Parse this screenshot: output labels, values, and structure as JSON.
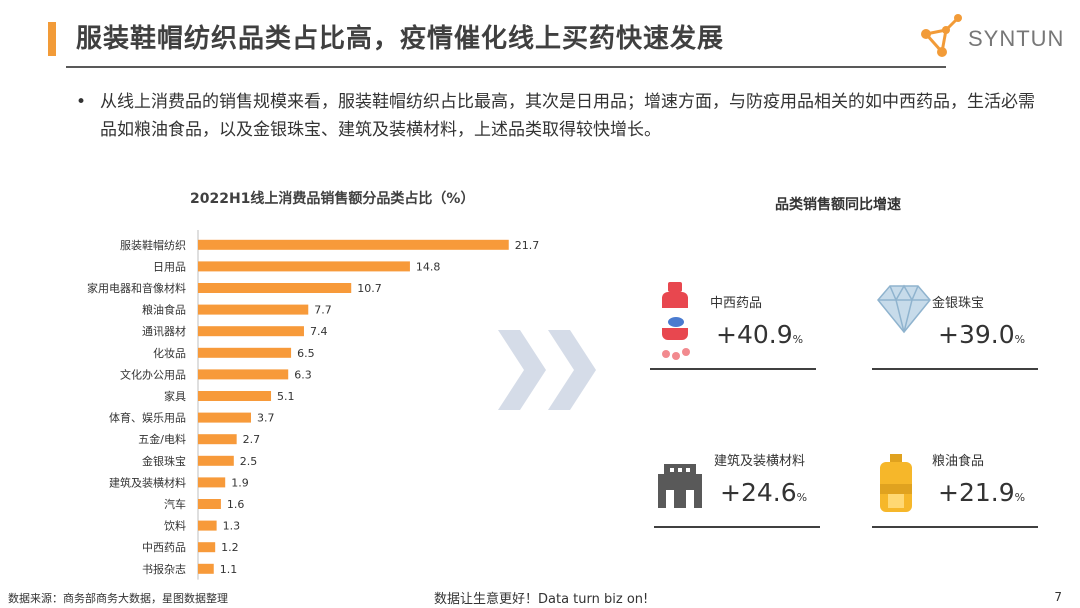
{
  "header": {
    "title": "服装鞋帽纺织品类占比高，疫情催化线上买药快速发展",
    "logo_text": "SYNTUN",
    "accent_color": "#F29B38"
  },
  "summary": {
    "bullet": "•",
    "text": "从线上消费品的销售规模来看，服装鞋帽纺织占比最高，其次是日用品；增速方面，与防疫用品相关的如中西药品，生活必需品如粮油食品，以及金银珠宝、建筑及装横材料，上述品类取得较快增长。"
  },
  "chart_data": {
    "type": "bar",
    "orientation": "horizontal",
    "title": "2022H1线上消费品销售额分品类占比（%）",
    "categories": [
      "服装鞋帽纺织",
      "日用品",
      "家用电器和音像材料",
      "粮油食品",
      "通讯器材",
      "化妆品",
      "文化办公用品",
      "家具",
      "体育、娱乐用品",
      "五金/电料",
      "金银珠宝",
      "建筑及装横材料",
      "汽车",
      "饮料",
      "中西药品",
      "书报杂志"
    ],
    "values": [
      21.7,
      14.8,
      10.7,
      7.7,
      7.4,
      6.5,
      6.3,
      5.1,
      3.7,
      2.7,
      2.5,
      1.9,
      1.6,
      1.3,
      1.2,
      1.1
    ],
    "value_labels": [
      "21.7",
      "14.8",
      "10.7",
      "7.7",
      "7.4",
      "6.5",
      "6.3",
      "5.1",
      "3.7",
      "2.7",
      "2.5",
      "1.9",
      "1.6",
      "1.3",
      "1.2",
      "1.1"
    ],
    "xlim": [
      0,
      25
    ],
    "bar_color": "#F79A3A",
    "grid": false
  },
  "growth": {
    "title": "品类销售额同比增速",
    "items": [
      {
        "name": "中西药品",
        "value": "+40.9",
        "unit": "%",
        "icon": "medicine-bottle-icon"
      },
      {
        "name": "金银珠宝",
        "value": "+39.0",
        "unit": "%",
        "icon": "diamond-icon"
      },
      {
        "name": "建筑及装横材料",
        "value": "+24.6",
        "unit": "%",
        "icon": "building-icon"
      },
      {
        "name": "粮油食品",
        "value": "+21.9",
        "unit": "%",
        "icon": "oil-bottle-icon"
      }
    ]
  },
  "footer": {
    "source": "数据来源：商务部商务大数据，星图数据整理",
    "slogan": "数据让生意更好！Data turn biz on!",
    "page": "7"
  }
}
